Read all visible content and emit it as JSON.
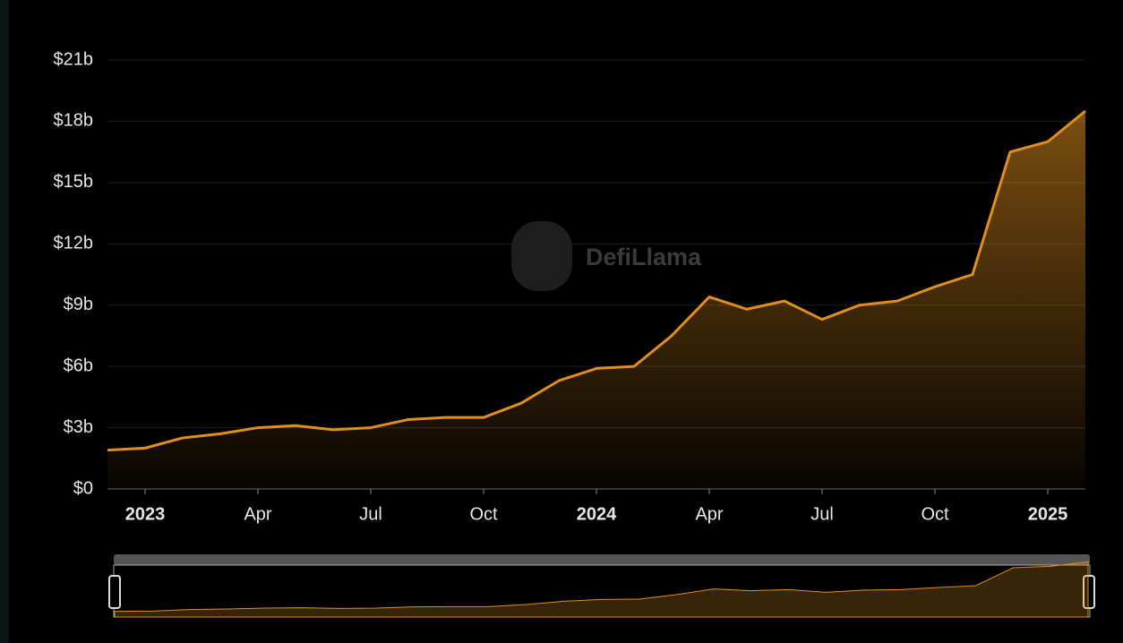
{
  "chart_data": {
    "type": "area",
    "watermark": "DefiLlama",
    "x": [
      "2022-12",
      "2023-01",
      "2023-02",
      "2023-03",
      "2023-04",
      "2023-05",
      "2023-06",
      "2023-07",
      "2023-08",
      "2023-09",
      "2023-10",
      "2023-11",
      "2023-12",
      "2024-01",
      "2024-02",
      "2024-03",
      "2024-04",
      "2024-05",
      "2024-06",
      "2024-07",
      "2024-08",
      "2024-09",
      "2024-10",
      "2024-11",
      "2024-12",
      "2025-01",
      "2025-02"
    ],
    "series": [
      {
        "color": "#e08e1e",
        "values": [
          1.9,
          2.0,
          2.5,
          2.7,
          3.0,
          3.1,
          2.9,
          3.0,
          3.4,
          3.5,
          3.5,
          4.2,
          5.3,
          5.9,
          6.0,
          7.5,
          9.4,
          8.8,
          9.2,
          8.3,
          9.0,
          9.2,
          9.9,
          10.5,
          16.5,
          17.0,
          18.5
        ]
      }
    ],
    "xlim": [
      "2022-12",
      "2025-02"
    ],
    "xticks": [
      {
        "value": "2023-01",
        "label": "2023"
      },
      {
        "value": "2023-04",
        "label": "Apr"
      },
      {
        "value": "2023-07",
        "label": "Jul"
      },
      {
        "value": "2023-10",
        "label": "Oct"
      },
      {
        "value": "2024-01",
        "label": "2024"
      },
      {
        "value": "2024-04",
        "label": "Apr"
      },
      {
        "value": "2024-07",
        "label": "Jul"
      },
      {
        "value": "2024-10",
        "label": "Oct"
      },
      {
        "value": "2025-01",
        "label": "2025"
      }
    ],
    "ylim": [
      0,
      21
    ],
    "yticks": [
      {
        "value": 0,
        "label": "$0"
      },
      {
        "value": 3,
        "label": "$3b"
      },
      {
        "value": 6,
        "label": "$6b"
      },
      {
        "value": 9,
        "label": "$9b"
      },
      {
        "value": 12,
        "label": "$12b"
      },
      {
        "value": 15,
        "label": "$15b"
      },
      {
        "value": 18,
        "label": "$18b"
      },
      {
        "value": 21,
        "label": "$21b"
      }
    ],
    "grid": true
  }
}
